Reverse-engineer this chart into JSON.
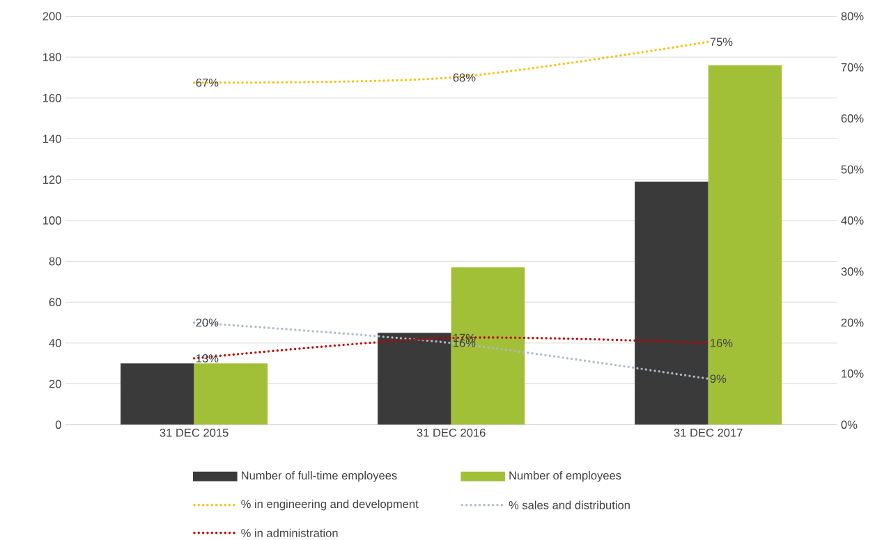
{
  "chart_data": {
    "type": "bar",
    "categories": [
      "31 DEC 2015",
      "31 DEC 2016",
      "31 DEC 2017"
    ],
    "series": [
      {
        "name": "Number of full-time employees",
        "color": "#3a3a3a",
        "values": [
          30,
          45,
          119
        ]
      },
      {
        "name": "Number of employees",
        "color": "#a2c037",
        "values": [
          30,
          77,
          176
        ]
      },
      {
        "name": "% in engineering and development",
        "type": "line",
        "axis": "y2",
        "color": "#fbbf0a",
        "line_style": "dotted",
        "values": [
          67,
          68,
          75
        ],
        "value_labels": [
          "67%",
          "68%",
          "75%"
        ]
      },
      {
        "name": "% sales and distribution",
        "type": "line",
        "axis": "y2",
        "color": "#b0b8c8",
        "line_style": "dotted",
        "values": [
          20,
          16,
          9
        ],
        "value_labels": [
          "20%",
          "16%",
          "9%"
        ]
      },
      {
        "name": "% in administration",
        "type": "line",
        "axis": "y2",
        "color": "#c00000",
        "line_style": "dotted",
        "values": [
          13,
          17,
          16
        ],
        "value_labels": [
          "13%",
          "17%",
          "16%"
        ]
      }
    ],
    "ylim": [
      0,
      200
    ],
    "yticks": [
      0,
      20,
      40,
      60,
      80,
      100,
      120,
      140,
      160,
      180,
      200
    ],
    "y2lim": [
      0,
      80
    ],
    "y2ticks": [
      {
        "value": 0,
        "label": "0%"
      },
      {
        "value": 10,
        "label": "10%"
      },
      {
        "value": 20,
        "label": "20%"
      },
      {
        "value": 30,
        "label": "30%"
      },
      {
        "value": 40,
        "label": "40%"
      },
      {
        "value": 50,
        "label": "50%"
      },
      {
        "value": 60,
        "label": "60%"
      },
      {
        "value": 70,
        "label": "70%"
      },
      {
        "value": 80,
        "label": "80%"
      }
    ],
    "grid": "y",
    "legend": "bottom"
  }
}
